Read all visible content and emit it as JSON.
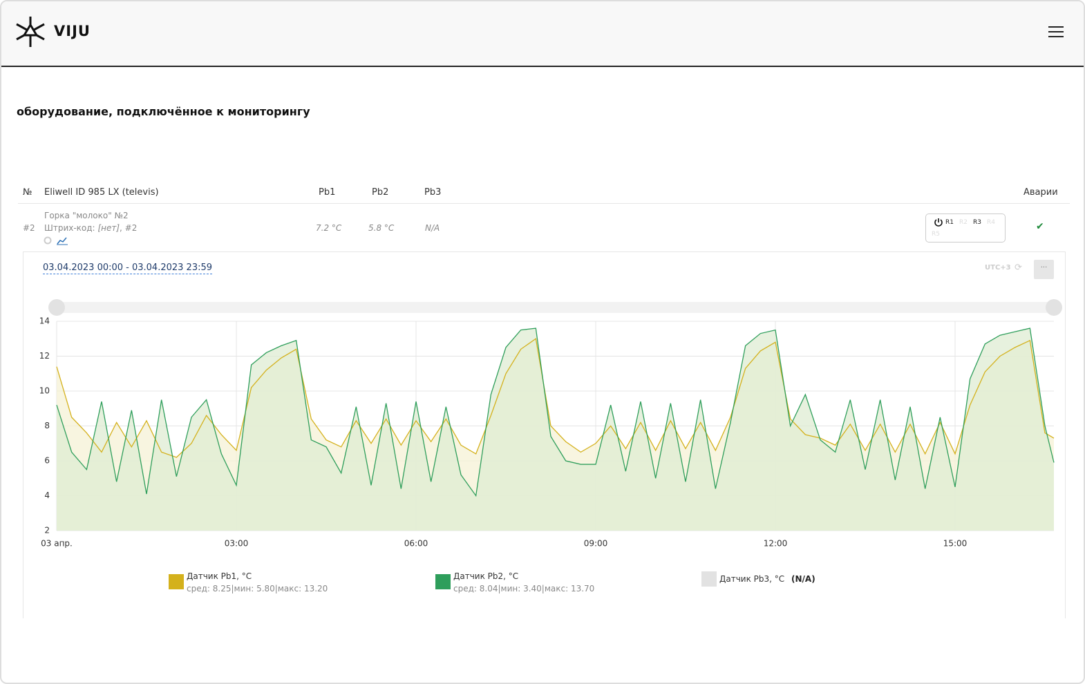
{
  "header": {
    "brand": "VIJU"
  },
  "page_title": "оборудование, подключённое к мониторингу",
  "table": {
    "columns": [
      "№",
      "Eliwell ID 985 LX (televis)",
      "Pb1",
      "Pb2",
      "Pb3",
      "Аварии"
    ],
    "row": {
      "number": "#2",
      "name": "Горка \"молоко\" №2",
      "barcode_label": "Штрих-код:",
      "barcode_value": "[нет]",
      "barcode_suffix": ", #2",
      "pb1": "7.2 °C",
      "pb2": "5.8 °C",
      "pb3": "N/A",
      "relays": [
        {
          "label": "R1",
          "active": true
        },
        {
          "label": "R2",
          "active": false
        },
        {
          "label": "R3",
          "active": true
        },
        {
          "label": "R4",
          "active": false
        },
        {
          "label": "R5",
          "active": false
        }
      ]
    }
  },
  "panel": {
    "date_range": "03.04.2023 00:00 - 03.04.2023 23:59",
    "timezone": "UTC+3",
    "menu": "···"
  },
  "chart_data": {
    "type": "line",
    "x": [
      0,
      0.25,
      0.5,
      0.75,
      1,
      1.25,
      1.5,
      1.75,
      2,
      2.25,
      2.5,
      2.75,
      3,
      3.25,
      3.5,
      3.75,
      4,
      4.25,
      4.5,
      4.75,
      5,
      5.25,
      5.5,
      5.75,
      6,
      6.25,
      6.5,
      6.75,
      7,
      7.25,
      7.5,
      7.75,
      8,
      8.25,
      8.5,
      8.75,
      9,
      9.25,
      9.5,
      9.75,
      10,
      10.25,
      10.5,
      10.75,
      11,
      11.25,
      11.5,
      11.75,
      12,
      12.25,
      12.5,
      12.75,
      13,
      13.25,
      13.5,
      13.75,
      14,
      14.25,
      14.5,
      14.75,
      15,
      15.25,
      15.5,
      15.75,
      16,
      16.25,
      16.5,
      16.65
    ],
    "series": [
      {
        "name": "Датчик Pb1, °C",
        "color": "#d4b11c",
        "fill": "#f6f1d6",
        "stats": "сред: 8.25|мин: 5.80|макс: 13.20",
        "values": [
          11.4,
          8.5,
          7.6,
          6.5,
          8.2,
          6.8,
          8.3,
          6.5,
          6.2,
          7.0,
          8.6,
          7.5,
          6.6,
          10.2,
          11.2,
          11.9,
          12.4,
          8.4,
          7.2,
          6.8,
          8.3,
          7.0,
          8.4,
          6.9,
          8.3,
          7.1,
          8.4,
          6.9,
          6.4,
          8.6,
          11.0,
          12.4,
          13.0,
          8.0,
          7.1,
          6.5,
          7.0,
          8.0,
          6.7,
          8.2,
          6.6,
          8.3,
          6.7,
          8.2,
          6.6,
          8.5,
          11.3,
          12.3,
          12.8,
          8.4,
          7.5,
          7.3,
          6.9,
          8.1,
          6.6,
          8.1,
          6.5,
          8.1,
          6.4,
          8.2,
          6.4,
          9.2,
          11.1,
          12.0,
          12.5,
          12.9,
          7.6,
          7.3
        ]
      },
      {
        "name": "Датчик Pb2, °C",
        "color": "#2e9e5b",
        "fill": "#dfecd3",
        "stats": "сред: 8.04|мин: 3.40|макс: 13.70",
        "values": [
          9.2,
          6.5,
          5.5,
          9.4,
          4.8,
          8.9,
          4.1,
          9.5,
          5.1,
          8.5,
          9.5,
          6.4,
          4.6,
          11.5,
          12.2,
          12.6,
          12.9,
          7.2,
          6.8,
          5.3,
          9.1,
          4.6,
          9.3,
          4.4,
          9.4,
          4.8,
          9.1,
          5.2,
          4.0,
          9.8,
          12.5,
          13.5,
          13.6,
          7.4,
          6.0,
          5.8,
          5.8,
          9.2,
          5.4,
          9.4,
          5.0,
          9.3,
          4.8,
          9.5,
          4.4,
          8.2,
          12.6,
          13.3,
          13.5,
          8.0,
          9.8,
          7.2,
          6.5,
          9.5,
          5.5,
          9.5,
          4.9,
          9.1,
          4.4,
          8.5,
          4.5,
          10.7,
          12.7,
          13.2,
          13.4,
          13.6,
          8.0,
          5.9
        ]
      }
    ],
    "inactive_series": {
      "name": "Датчик Pb3, °C",
      "status": "(N/A)",
      "color": "#e2e2e2"
    },
    "xlim": [
      0,
      16.65
    ],
    "xticks": [
      {
        "value": 0,
        "label": "03 апр."
      },
      {
        "value": 3,
        "label": "03:00"
      },
      {
        "value": 6,
        "label": "06:00"
      },
      {
        "value": 9,
        "label": "09:00"
      },
      {
        "value": 12,
        "label": "12:00"
      },
      {
        "value": 15,
        "label": "15:00"
      }
    ],
    "ylim": [
      2,
      14
    ],
    "yticks": [
      2,
      4,
      6,
      8,
      10,
      12,
      14
    ],
    "grid": true
  }
}
